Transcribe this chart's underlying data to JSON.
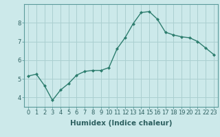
{
  "x": [
    0,
    1,
    2,
    3,
    4,
    5,
    6,
    7,
    8,
    9,
    10,
    11,
    12,
    13,
    14,
    15,
    16,
    17,
    18,
    19,
    20,
    21,
    22,
    23
  ],
  "y": [
    5.15,
    5.25,
    4.65,
    3.85,
    4.4,
    4.75,
    5.2,
    5.4,
    5.45,
    5.45,
    5.6,
    6.6,
    7.2,
    7.95,
    8.55,
    8.6,
    8.2,
    7.5,
    7.35,
    7.25,
    7.2,
    7.0,
    6.65,
    6.3
  ],
  "line_color": "#2d7d6e",
  "marker": "D",
  "marker_size": 2.0,
  "bg_color": "#cce9ea",
  "grid_color": "#aacfd0",
  "xlabel": "Humidex (Indice chaleur)",
  "xlim": [
    -0.5,
    23.5
  ],
  "ylim": [
    3.5,
    9.0
  ],
  "yticks": [
    4,
    5,
    6,
    7,
    8
  ],
  "xticks": [
    0,
    1,
    2,
    3,
    4,
    5,
    6,
    7,
    8,
    9,
    10,
    11,
    12,
    13,
    14,
    15,
    16,
    17,
    18,
    19,
    20,
    21,
    22,
    23
  ],
  "tick_fontsize": 6,
  "label_fontsize": 7.5,
  "line_width": 1.0,
  "spine_color": "#5a9a9a",
  "tick_color": "#2d6060"
}
